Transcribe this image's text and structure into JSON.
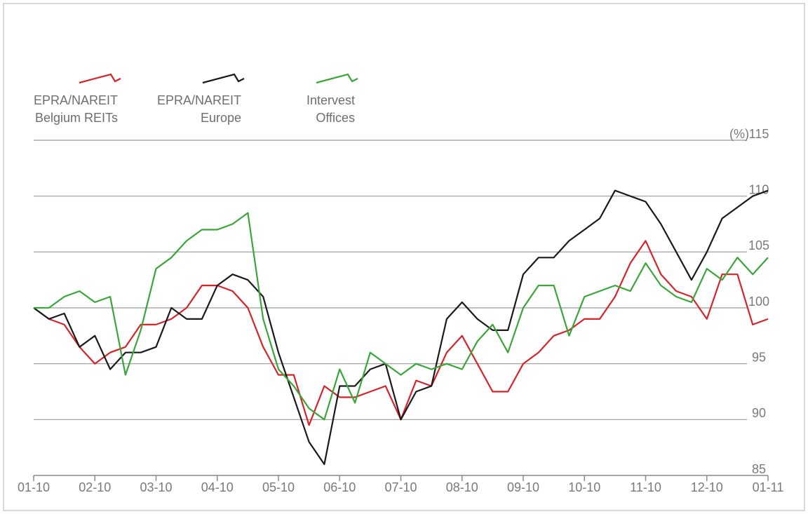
{
  "chart_data": {
    "type": "line",
    "y_unit": "(%)",
    "xlim": [
      0,
      12
    ],
    "xticks": [
      {
        "value": 0,
        "label": "01-10"
      },
      {
        "value": 1,
        "label": "02-10"
      },
      {
        "value": 2,
        "label": "03-10"
      },
      {
        "value": 3,
        "label": "04-10"
      },
      {
        "value": 4,
        "label": "05-10"
      },
      {
        "value": 5,
        "label": "06-10"
      },
      {
        "value": 6,
        "label": "07-10"
      },
      {
        "value": 7,
        "label": "08-10"
      },
      {
        "value": 8,
        "label": "09-10"
      },
      {
        "value": 9,
        "label": "10-10"
      },
      {
        "value": 10,
        "label": "11-10"
      },
      {
        "value": 11,
        "label": "12-10"
      },
      {
        "value": 12,
        "label": "01-11"
      }
    ],
    "ylim": [
      85,
      115
    ],
    "yticks": [
      85,
      90,
      95,
      100,
      105,
      110,
      115
    ],
    "grid": true,
    "x": [
      0,
      0.25,
      0.5,
      0.75,
      1,
      1.25,
      1.5,
      1.75,
      2,
      2.25,
      2.5,
      2.75,
      3,
      3.25,
      3.5,
      3.75,
      4,
      4.25,
      4.5,
      4.75,
      5,
      5.25,
      5.5,
      5.75,
      6,
      6.25,
      6.5,
      6.75,
      7,
      7.25,
      7.5,
      7.75,
      8,
      8.25,
      8.5,
      8.75,
      9,
      9.25,
      9.5,
      9.75,
      10,
      10.25,
      10.5,
      10.75,
      11,
      11.25,
      11.5,
      11.75,
      12
    ],
    "series": [
      {
        "name": "EPRA/NAREIT Belgium REITs",
        "color": "#d8232a",
        "values": [
          100,
          99,
          98.5,
          96.5,
          95,
          96,
          96.5,
          98.5,
          98.5,
          99,
          100,
          102,
          102,
          101.5,
          100,
          96.5,
          94,
          94,
          89.5,
          93,
          92,
          92,
          92.5,
          93,
          90,
          93.5,
          93,
          96,
          97.5,
          95,
          92.5,
          92.5,
          95,
          96,
          97.5,
          98,
          99,
          99,
          101,
          104,
          106,
          103,
          101.5,
          101,
          99,
          103,
          103,
          98.5,
          99
        ]
      },
      {
        "name": "EPRA/NAREIT Europe",
        "color": "#1a1a1a",
        "values": [
          100,
          99,
          99.5,
          96.5,
          97.5,
          94.5,
          96,
          96,
          96.5,
          100,
          99,
          99,
          102,
          103,
          102.5,
          101,
          96,
          92,
          88,
          86,
          93,
          93,
          94.5,
          95,
          90,
          92.5,
          93,
          99,
          100.5,
          99,
          98,
          98,
          103,
          104.5,
          104.5,
          106,
          107,
          108,
          110.5,
          110,
          109.5,
          107.5,
          105,
          102.5,
          105,
          108,
          109,
          110,
          110.5
        ]
      },
      {
        "name": "Intervest Offices",
        "color": "#3aa63a",
        "values": [
          100,
          100,
          101,
          101.5,
          100.5,
          101,
          94,
          98,
          103.5,
          104.5,
          106,
          107,
          107,
          107.5,
          108.5,
          99,
          94.5,
          93,
          91,
          90,
          94.5,
          91.5,
          96,
          95,
          94,
          95,
          94.5,
          95,
          94.5,
          97,
          98.5,
          96,
          100,
          102,
          102,
          97.5,
          101,
          101.5,
          102,
          101.5,
          104,
          102,
          101,
          100.5,
          103.5,
          102.5,
          104.5,
          103,
          104.5
        ]
      }
    ]
  }
}
